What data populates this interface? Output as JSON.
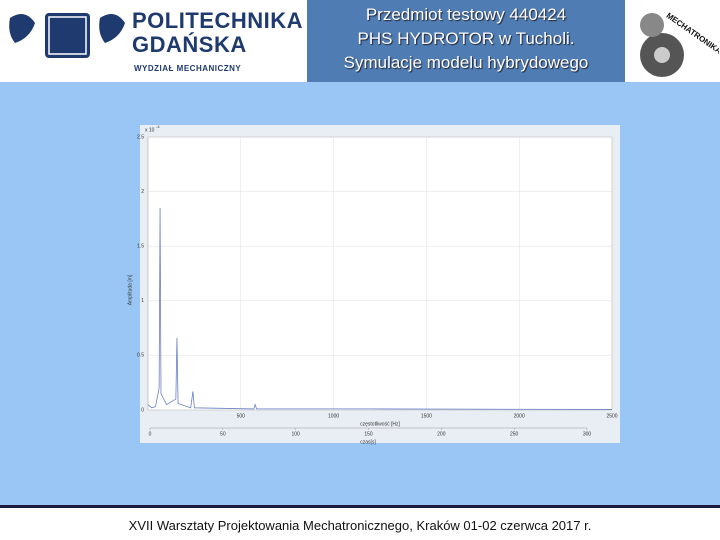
{
  "header": {
    "university_line1": "POLITECHNIKA",
    "university_line2": "GDAŃSKA",
    "faculty": "WYDZIAŁ MECHANICZNY",
    "title_lines": [
      "Przedmiot testowy 440424",
      "PHS HYDROTOR w Tucholi.",
      "Symulacje modelu hybrydowego"
    ],
    "badge": "MECHATRONIKA"
  },
  "chart_data": {
    "type": "line",
    "xlabel": "częstotliwość [Hz]",
    "x2label": "czas[s]",
    "ylabel": "Amplituda [m]",
    "y_multiplier": "x 10",
    "y_exponent": "-4",
    "x": [
      0,
      20,
      40,
      60,
      65,
      70,
      100,
      150,
      156,
      162,
      230,
      242,
      250,
      570,
      577,
      585,
      1200,
      2500
    ],
    "series": [
      {
        "name": "Amplituda",
        "color": "#6a7fc8",
        "values": [
          0.05,
          0.02,
          0.03,
          0.2,
          1.85,
          0.15,
          0.05,
          0.1,
          0.66,
          0.06,
          0.02,
          0.17,
          0.02,
          0.01,
          0.05,
          0.01,
          0.01,
          0.005
        ]
      }
    ],
    "xlim": [
      0,
      2500
    ],
    "xticks": [
      500,
      1000,
      1500,
      2000,
      2500
    ],
    "x2lim": [
      0,
      300
    ],
    "x2ticks": [
      0,
      50,
      100,
      150,
      200,
      250,
      300
    ],
    "ylim": [
      0,
      2.5
    ],
    "yticks": [
      0,
      0.5,
      1,
      1.5,
      2,
      2.5
    ],
    "grid": true
  },
  "footer": {
    "text": "XVII Warsztaty Projektowania Mechatronicznego, Kraków 01-02 czerwca 2017 r."
  }
}
